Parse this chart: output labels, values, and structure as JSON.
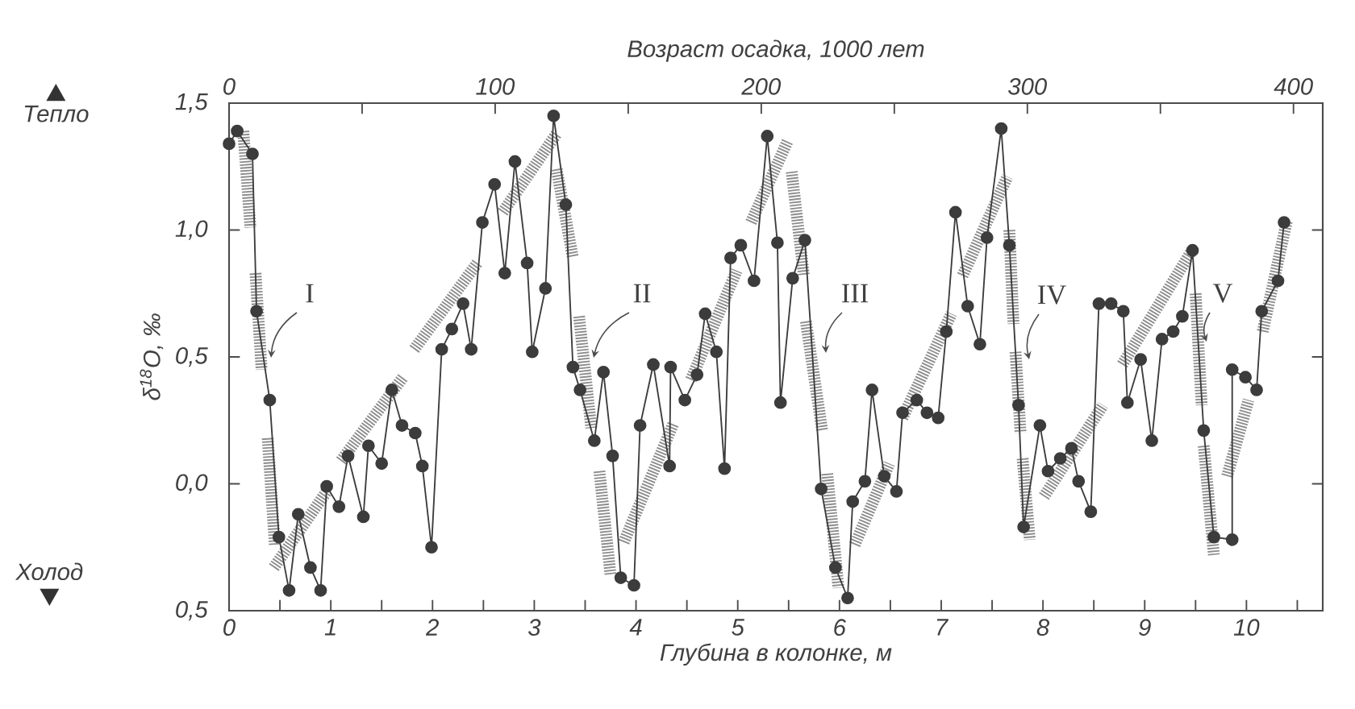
{
  "chart_data": {
    "type": "line",
    "xlabel": "Глубина в колонке, м",
    "x2label": "Возраст осадка, 1000 лет",
    "ylabel": "δ$^{18}$O, ‰",
    "xlim": [
      0,
      10.75
    ],
    "xticks": [
      0,
      {
        "value": 0.5,
        "label": null
      },
      1,
      {
        "value": 1.5,
        "label": null
      },
      2,
      {
        "value": 2.5,
        "label": null
      },
      3,
      {
        "value": 3.5,
        "label": null
      },
      4,
      {
        "value": 4.5,
        "label": null
      },
      5,
      {
        "value": 5.5,
        "label": null
      },
      6,
      {
        "value": 6.5,
        "label": null
      },
      7,
      {
        "value": 7.5,
        "label": null
      },
      8,
      {
        "value": 8.5,
        "label": null
      },
      9,
      {
        "value": 9.5,
        "label": null
      },
      10,
      {
        "value": 10.5,
        "label": null
      }
    ],
    "x2lim": [
      0,
      411
    ],
    "x2ticks": [
      0,
      {
        "value": 50,
        "label": null
      },
      100,
      {
        "value": 150,
        "label": null
      },
      200,
      {
        "value": 250,
        "label": null
      },
      300,
      {
        "value": 350,
        "label": null
      },
      400
    ],
    "ylim": [
      -0.5,
      1.5
    ],
    "yticks": [
      {
        "value": 1.5,
        "label": "1,5"
      },
      {
        "value": 1.0,
        "label": "1,0"
      },
      {
        "value": 0.5,
        "label": "0,5"
      },
      {
        "value": 0,
        "label": "0,0"
      },
      {
        "value": -0.5,
        "label": "0,5"
      }
    ],
    "marker": "circle",
    "series": [
      {
        "color": "#8c8c8c",
        "marker": "none",
        "line_style": "dotted",
        "x": [
          0.14,
          0.21,
          null,
          0.26,
          0.32,
          null,
          0.38,
          0.45,
          null,
          0.44,
          0.96,
          null,
          1.1,
          1.71,
          null,
          1.82,
          2.44,
          null,
          2.69,
          3.22,
          null,
          3.22,
          3.38,
          null,
          3.44,
          3.56,
          null,
          3.64,
          3.75,
          null,
          3.88,
          4.37,
          null,
          4.54,
          4.99,
          null,
          5.13,
          5.49,
          null,
          5.53,
          5.65,
          null,
          5.67,
          5.83,
          null,
          5.88,
          5.99,
          null,
          6.15,
          6.49,
          null,
          6.62,
          7.1,
          null,
          7.21,
          7.65,
          null,
          7.67,
          7.71,
          null,
          7.73,
          7.78,
          null,
          7.8,
          7.87,
          null,
          8.01,
          8.59,
          null,
          8.78,
          9.45,
          null,
          9.5,
          9.56,
          null,
          9.58,
          9.68,
          null,
          9.81,
          10.02,
          null,
          10.16,
          10.4
        ],
        "values": [
          1.39,
          1.01,
          null,
          0.83,
          0.45,
          null,
          0.18,
          -0.24,
          null,
          -0.33,
          -0.03,
          null,
          0.09,
          0.42,
          null,
          0.53,
          0.87,
          null,
          1.07,
          1.38,
          null,
          1.24,
          0.89,
          null,
          0.66,
          0.22,
          null,
          0.05,
          -0.36,
          null,
          -0.23,
          0.24,
          null,
          0.41,
          0.84,
          null,
          1.03,
          1.35,
          null,
          1.23,
          0.82,
          null,
          0.64,
          0.21,
          null,
          0.04,
          -0.41,
          null,
          -0.24,
          0.08,
          null,
          0.26,
          0.67,
          null,
          0.82,
          1.21,
          null,
          1.0,
          0.63,
          null,
          0.52,
          0.2,
          null,
          0.1,
          -0.22,
          null,
          -0.05,
          0.31,
          null,
          0.47,
          0.91,
          null,
          0.75,
          0.31,
          null,
          0.15,
          -0.28,
          null,
          0.03,
          0.33,
          null,
          0.6,
          1.04
        ]
      },
      {
        "color": "#3c3c3c",
        "line_style": "solid",
        "x": [
          0,
          0.08,
          0.23,
          0.27,
          0.4,
          0.49,
          0.59,
          0.68,
          0.8,
          0.9,
          0.96,
          1.08,
          1.17,
          1.32,
          1.37,
          1.5,
          1.6,
          1.7,
          1.83,
          1.9,
          1.99,
          2.09,
          2.19,
          2.3,
          2.38,
          2.49,
          2.61,
          2.71,
          2.81,
          2.93,
          2.98,
          3.11,
          3.19,
          3.31,
          3.38,
          3.45,
          3.59,
          3.68,
          3.77,
          3.85,
          3.98,
          4.04,
          4.17,
          4.33,
          4.34,
          4.48,
          4.6,
          4.68,
          4.79,
          4.87,
          4.93,
          5.03,
          5.16,
          5.29,
          5.39,
          5.42,
          5.54,
          5.66,
          5.82,
          5.96,
          6.08,
          6.13,
          6.25,
          6.32,
          6.44,
          6.56,
          6.62,
          6.76,
          6.86,
          6.97,
          7.05,
          7.14,
          7.26,
          7.38,
          7.45,
          7.59,
          7.67,
          7.76,
          7.81,
          7.97,
          8.05,
          8.17,
          8.28,
          8.35,
          8.47,
          8.55,
          8.67,
          8.79,
          8.83,
          8.96,
          9.07,
          9.17,
          9.28,
          9.37,
          9.47,
          9.58,
          9.68,
          9.86,
          9.86,
          9.99,
          10.1,
          10.15,
          10.31,
          10.37
        ],
        "values": [
          1.34,
          1.39,
          1.3,
          0.68,
          0.33,
          -0.21,
          -0.42,
          -0.12,
          -0.33,
          -0.42,
          -0.01,
          -0.09,
          0.11,
          -0.13,
          0.15,
          0.08,
          0.37,
          0.23,
          0.2,
          0.07,
          -0.25,
          0.53,
          0.61,
          0.71,
          0.53,
          1.03,
          1.18,
          0.83,
          1.27,
          0.87,
          0.52,
          0.77,
          1.45,
          1.1,
          0.46,
          0.37,
          0.17,
          0.44,
          0.11,
          -0.37,
          -0.4,
          0.23,
          0.47,
          0.07,
          0.46,
          0.33,
          0.43,
          0.67,
          0.52,
          0.06,
          0.89,
          0.94,
          0.8,
          1.37,
          0.95,
          0.32,
          0.81,
          0.96,
          -0.02,
          -0.33,
          -0.45,
          -0.07,
          0.01,
          0.37,
          0.03,
          -0.03,
          0.28,
          0.33,
          0.28,
          0.26,
          0.6,
          1.07,
          0.7,
          0.55,
          0.97,
          1.4,
          0.94,
          0.31,
          -0.17,
          0.23,
          0.05,
          0.1,
          0.14,
          0.01,
          -0.11,
          0.71,
          0.71,
          0.68,
          0.32,
          0.49,
          0.17,
          0.57,
          0.6,
          0.66,
          0.92,
          0.21,
          -0.21,
          -0.22,
          0.45,
          0.42,
          0.37,
          0.68,
          0.8,
          1.03
        ]
      }
    ],
    "annotations": [
      "Тепло",
      "Холод",
      "I",
      "II",
      "III",
      "IV",
      "V"
    ]
  }
}
